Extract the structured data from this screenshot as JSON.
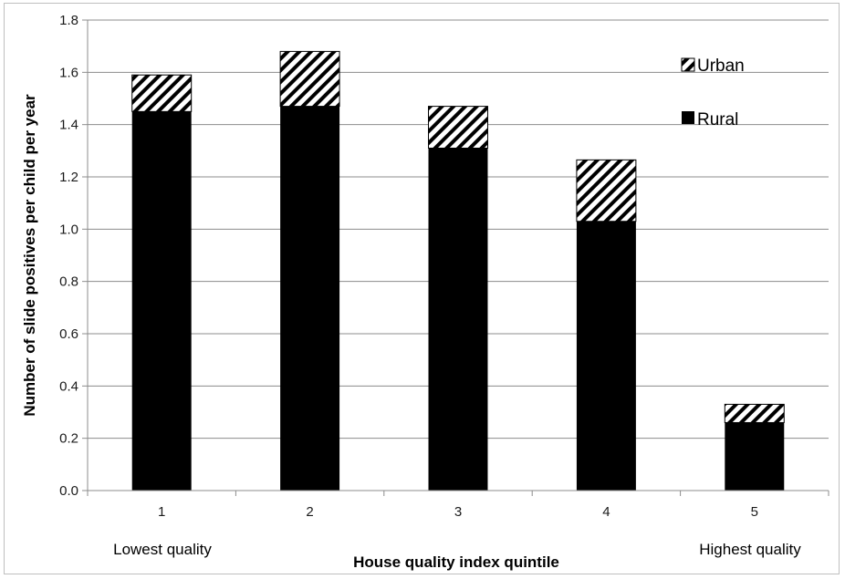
{
  "chart_data": {
    "type": "bar",
    "stacked": true,
    "categories": [
      "1",
      "2",
      "3",
      "4",
      "5"
    ],
    "series": [
      {
        "name": "Rural",
        "values": [
          1.45,
          1.47,
          1.31,
          1.03,
          0.26
        ],
        "color": "#000000",
        "pattern": "solid"
      },
      {
        "name": "Urban",
        "values": [
          0.14,
          0.21,
          0.16,
          0.235,
          0.07
        ],
        "color": "#000000",
        "pattern": "diagonal-hatch"
      }
    ],
    "totals": [
      1.59,
      1.68,
      1.47,
      1.265,
      0.33
    ],
    "xlabel": "House quality index quintile",
    "ylabel": "Number of slide positives per child per year",
    "ylim": [
      0,
      1.8
    ],
    "yticks": [
      "0.0",
      "0.2",
      "0.4",
      "0.6",
      "0.8",
      "1.0",
      "1.2",
      "1.4",
      "1.6",
      "1.8"
    ],
    "category_notes": {
      "first": "Lowest quality",
      "last": "Highest quality"
    },
    "legend": {
      "position": "top-right",
      "items": [
        "Urban",
        "Rural"
      ]
    },
    "grid": true
  }
}
